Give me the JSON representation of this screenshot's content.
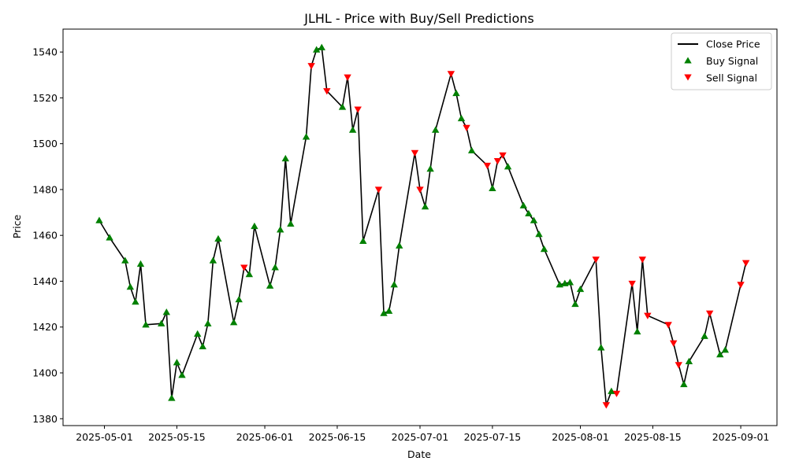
{
  "chart_data": {
    "type": "line",
    "title": "JLHL - Price with Buy/Sell Predictions",
    "xlabel": "Date",
    "ylabel": "Price",
    "x_ticks": [
      "2025-05-01",
      "2025-05-15",
      "2025-06-01",
      "2025-06-15",
      "2025-07-01",
      "2025-07-15",
      "2025-08-01",
      "2025-08-15",
      "2025-09-01"
    ],
    "y_ticks": [
      1380,
      1400,
      1420,
      1440,
      1460,
      1480,
      1500,
      1520,
      1540
    ],
    "xlim": [
      "2025-04-23",
      "2025-09-08"
    ],
    "ylim": [
      1377,
      1550
    ],
    "grid": false,
    "legend_position": "top-right",
    "legend": {
      "line": "Close Price",
      "buy": "Buy Signal",
      "sell": "Sell Signal"
    },
    "colors": {
      "line": "#000000",
      "buy": "#008000",
      "sell": "#ff0000"
    },
    "series": [
      {
        "name": "Close Price",
        "points": [
          {
            "date": "2025-04-30",
            "price": 1466.5,
            "signal": "buy"
          },
          {
            "date": "2025-05-02",
            "price": 1459,
            "signal": "buy"
          },
          {
            "date": "2025-05-05",
            "price": 1449,
            "signal": "buy"
          },
          {
            "date": "2025-05-06",
            "price": 1437.5,
            "signal": "buy"
          },
          {
            "date": "2025-05-07",
            "price": 1431,
            "signal": "buy"
          },
          {
            "date": "2025-05-08",
            "price": 1447.5,
            "signal": "buy"
          },
          {
            "date": "2025-05-09",
            "price": 1421,
            "signal": "buy"
          },
          {
            "date": "2025-05-12",
            "price": 1421.5,
            "signal": "buy"
          },
          {
            "date": "2025-05-13",
            "price": 1426.5,
            "signal": "buy"
          },
          {
            "date": "2025-05-14",
            "price": 1389,
            "signal": "buy"
          },
          {
            "date": "2025-05-15",
            "price": 1404.5,
            "signal": "buy"
          },
          {
            "date": "2025-05-16",
            "price": 1399,
            "signal": "buy"
          },
          {
            "date": "2025-05-19",
            "price": 1417,
            "signal": "buy"
          },
          {
            "date": "2025-05-20",
            "price": 1411.5,
            "signal": "buy"
          },
          {
            "date": "2025-05-21",
            "price": 1421.5,
            "signal": "buy"
          },
          {
            "date": "2025-05-22",
            "price": 1449,
            "signal": "buy"
          },
          {
            "date": "2025-05-23",
            "price": 1458.5,
            "signal": "buy"
          },
          {
            "date": "2025-05-26",
            "price": 1422,
            "signal": "buy"
          },
          {
            "date": "2025-05-27",
            "price": 1432,
            "signal": "buy"
          },
          {
            "date": "2025-05-28",
            "price": 1446,
            "signal": "sell"
          },
          {
            "date": "2025-05-29",
            "price": 1443,
            "signal": "buy"
          },
          {
            "date": "2025-05-30",
            "price": 1464,
            "signal": "buy"
          },
          {
            "date": "2025-06-02",
            "price": 1438,
            "signal": "buy"
          },
          {
            "date": "2025-06-03",
            "price": 1446,
            "signal": "buy"
          },
          {
            "date": "2025-06-04",
            "price": 1462.5,
            "signal": "buy"
          },
          {
            "date": "2025-06-05",
            "price": 1493.5,
            "signal": "buy"
          },
          {
            "date": "2025-06-06",
            "price": 1465,
            "signal": "buy"
          },
          {
            "date": "2025-06-09",
            "price": 1503,
            "signal": "buy"
          },
          {
            "date": "2025-06-10",
            "price": 1534,
            "signal": "sell"
          },
          {
            "date": "2025-06-11",
            "price": 1541,
            "signal": "buy"
          },
          {
            "date": "2025-06-12",
            "price": 1542,
            "signal": "buy"
          },
          {
            "date": "2025-06-13",
            "price": 1523,
            "signal": "sell"
          },
          {
            "date": "2025-06-16",
            "price": 1516,
            "signal": "buy"
          },
          {
            "date": "2025-06-17",
            "price": 1529,
            "signal": "sell"
          },
          {
            "date": "2025-06-18",
            "price": 1506,
            "signal": "buy"
          },
          {
            "date": "2025-06-19",
            "price": 1515,
            "signal": "sell"
          },
          {
            "date": "2025-06-20",
            "price": 1457.5,
            "signal": "buy"
          },
          {
            "date": "2025-06-23",
            "price": 1480,
            "signal": "sell"
          },
          {
            "date": "2025-06-24",
            "price": 1426,
            "signal": "buy"
          },
          {
            "date": "2025-06-25",
            "price": 1427,
            "signal": "buy"
          },
          {
            "date": "2025-06-26",
            "price": 1438.5,
            "signal": "buy"
          },
          {
            "date": "2025-06-27",
            "price": 1455.5,
            "signal": "buy"
          },
          {
            "date": "2025-06-30",
            "price": 1496,
            "signal": "sell"
          },
          {
            "date": "2025-07-01",
            "price": 1480,
            "signal": "sell"
          },
          {
            "date": "2025-07-02",
            "price": 1472.5,
            "signal": "buy"
          },
          {
            "date": "2025-07-03",
            "price": 1489,
            "signal": "buy"
          },
          {
            "date": "2025-07-04",
            "price": 1506,
            "signal": "buy"
          },
          {
            "date": "2025-07-07",
            "price": 1530.5,
            "signal": "sell"
          },
          {
            "date": "2025-07-08",
            "price": 1522,
            "signal": "buy"
          },
          {
            "date": "2025-07-09",
            "price": 1511,
            "signal": "buy"
          },
          {
            "date": "2025-07-10",
            "price": 1507,
            "signal": "sell"
          },
          {
            "date": "2025-07-11",
            "price": 1497,
            "signal": "buy"
          },
          {
            "date": "2025-07-14",
            "price": 1490.5,
            "signal": "sell"
          },
          {
            "date": "2025-07-15",
            "price": 1480.5,
            "signal": "buy"
          },
          {
            "date": "2025-07-16",
            "price": 1492.5,
            "signal": "sell"
          },
          {
            "date": "2025-07-17",
            "price": 1495,
            "signal": "sell"
          },
          {
            "date": "2025-07-18",
            "price": 1490,
            "signal": "buy"
          },
          {
            "date": "2025-07-21",
            "price": 1473,
            "signal": "buy"
          },
          {
            "date": "2025-07-22",
            "price": 1469.5,
            "signal": "buy"
          },
          {
            "date": "2025-07-23",
            "price": 1466.5,
            "signal": "buy"
          },
          {
            "date": "2025-07-24",
            "price": 1460.5,
            "signal": "buy"
          },
          {
            "date": "2025-07-25",
            "price": 1454,
            "signal": "buy"
          },
          {
            "date": "2025-07-28",
            "price": 1438.5,
            "signal": "buy"
          },
          {
            "date": "2025-07-29",
            "price": 1439,
            "signal": "buy"
          },
          {
            "date": "2025-07-30",
            "price": 1439.5,
            "signal": "buy"
          },
          {
            "date": "2025-07-31",
            "price": 1430,
            "signal": "buy"
          },
          {
            "date": "2025-08-01",
            "price": 1436.5,
            "signal": "buy"
          },
          {
            "date": "2025-08-04",
            "price": 1449.5,
            "signal": "sell"
          },
          {
            "date": "2025-08-05",
            "price": 1411,
            "signal": "buy"
          },
          {
            "date": "2025-08-06",
            "price": 1386,
            "signal": "sell"
          },
          {
            "date": "2025-08-07",
            "price": 1392,
            "signal": "buy"
          },
          {
            "date": "2025-08-08",
            "price": 1391,
            "signal": "sell"
          },
          {
            "date": "2025-08-11",
            "price": 1439,
            "signal": "sell"
          },
          {
            "date": "2025-08-12",
            "price": 1418,
            "signal": "buy"
          },
          {
            "date": "2025-08-13",
            "price": 1449.5,
            "signal": "sell"
          },
          {
            "date": "2025-08-14",
            "price": 1425,
            "signal": "sell"
          },
          {
            "date": "2025-08-18",
            "price": 1421,
            "signal": "sell"
          },
          {
            "date": "2025-08-19",
            "price": 1413,
            "signal": "sell"
          },
          {
            "date": "2025-08-20",
            "price": 1403.5,
            "signal": "sell"
          },
          {
            "date": "2025-08-21",
            "price": 1395,
            "signal": "buy"
          },
          {
            "date": "2025-08-22",
            "price": 1405,
            "signal": "buy"
          },
          {
            "date": "2025-08-25",
            "price": 1416,
            "signal": "buy"
          },
          {
            "date": "2025-08-26",
            "price": 1426,
            "signal": "sell"
          },
          {
            "date": "2025-08-28",
            "price": 1408,
            "signal": "buy"
          },
          {
            "date": "2025-08-29",
            "price": 1410,
            "signal": "buy"
          },
          {
            "date": "2025-09-01",
            "price": 1438.5,
            "signal": "sell"
          },
          {
            "date": "2025-09-02",
            "price": 1448,
            "signal": "sell"
          }
        ]
      }
    ]
  }
}
